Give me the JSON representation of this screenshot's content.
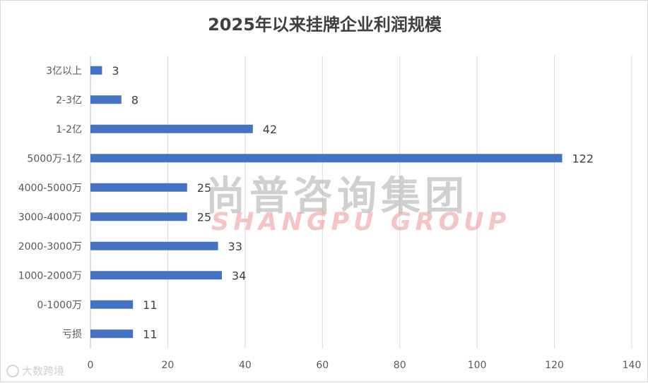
{
  "chart_data": {
    "type": "bar",
    "orientation": "horizontal",
    "title": "2025年以来挂牌企业利润规模",
    "categories": [
      "3亿以上",
      "2-3亿",
      "1-2亿",
      "5000万-1亿",
      "4000-5000万",
      "3000-4000万",
      "2000-3000万",
      "1000-2000万",
      "0-1000万",
      "亏损"
    ],
    "values": [
      3,
      8,
      42,
      122,
      25,
      25,
      33,
      34,
      11,
      11
    ],
    "xlim": [
      0,
      140
    ],
    "xticks": [
      0,
      20,
      40,
      60,
      80,
      100,
      120,
      140
    ],
    "bar_color": "#4472C4",
    "grid": "vertical",
    "data_labels": true
  },
  "watermark": {
    "cn": "尚普咨询集团",
    "en": "SHANGPU GROUP"
  },
  "corner_logo": {
    "text": "大数跨境"
  }
}
